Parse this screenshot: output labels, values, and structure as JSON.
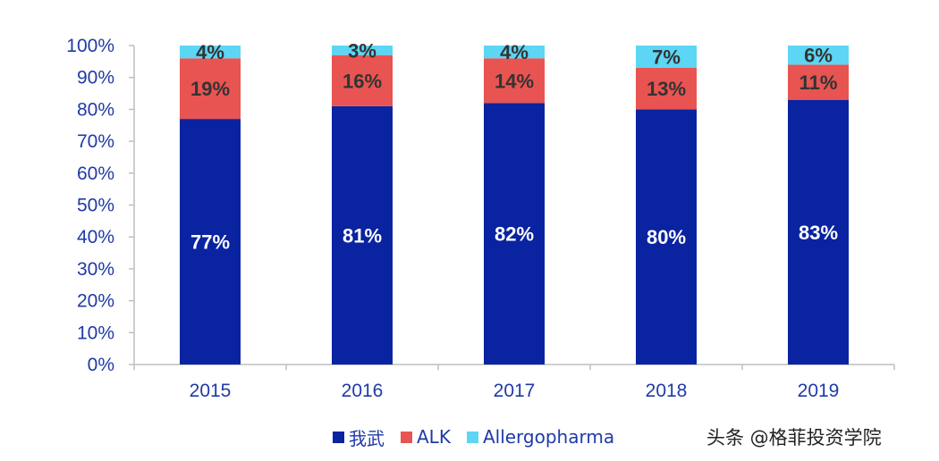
{
  "chart_data": {
    "type": "bar",
    "stacked": true,
    "categories": [
      "2015",
      "2016",
      "2017",
      "2018",
      "2019"
    ],
    "series": [
      {
        "name": "我武",
        "color": "#0a23a0",
        "values": [
          77,
          81,
          82,
          80,
          83
        ],
        "labels": [
          "77%",
          "81%",
          "82%",
          "80%",
          "83%"
        ],
        "label_color": "#ffffff"
      },
      {
        "name": "ALK",
        "color": "#e85451",
        "values": [
          19,
          16,
          14,
          13,
          11
        ],
        "labels": [
          "19%",
          "16%",
          "14%",
          "13%",
          "11%"
        ],
        "label_color": "#333333"
      },
      {
        "name": "Allergopharma",
        "color": "#5cd6f4",
        "values": [
          4,
          3,
          4,
          7,
          6
        ],
        "labels": [
          "4%",
          "3%",
          "4%",
          "7%",
          "6%"
        ],
        "label_color": "#333333"
      }
    ],
    "yticks": [
      "0%",
      "10%",
      "20%",
      "30%",
      "40%",
      "50%",
      "60%",
      "70%",
      "80%",
      "90%",
      "100%"
    ],
    "ylim": [
      0,
      100
    ],
    "title": "",
    "xlabel": "",
    "ylabel": "",
    "legend": "bottom"
  },
  "watermark": "头条 @格菲投资学院"
}
